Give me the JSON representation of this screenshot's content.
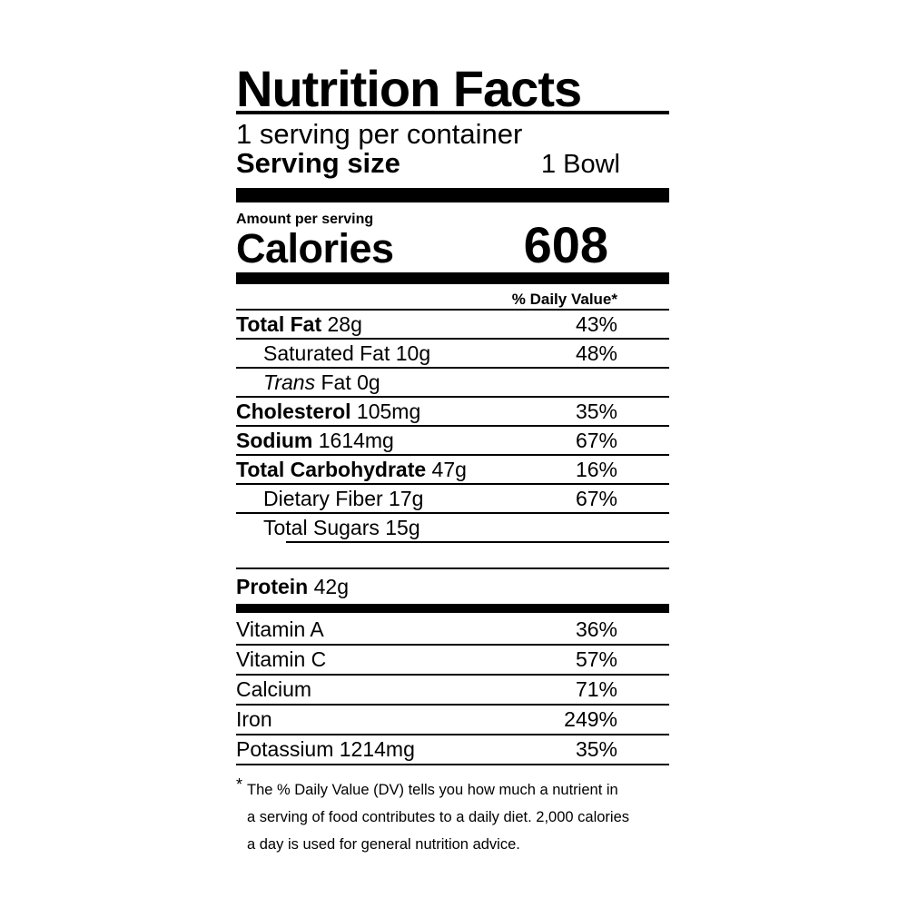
{
  "label": {
    "title": "Nutrition Facts",
    "servings_per_container": "1 serving per container",
    "serving_size": {
      "label": "Serving size",
      "value": "1 Bowl"
    },
    "amount_per_serving": "Amount per serving",
    "calories": {
      "label": "Calories",
      "value": "608"
    },
    "daily_value_header": "% Daily Value*",
    "rows": [
      {
        "bold": "Total Fat",
        "rest": " 28g",
        "dv": "43%"
      },
      {
        "rest": "Saturated Fat 10g",
        "dv": "48%"
      },
      {
        "italic": "Trans",
        "rest": " Fat 0g",
        "dv": ""
      },
      {
        "bold": "Cholesterol",
        "rest": " 105mg",
        "dv": "35%"
      },
      {
        "bold": "Sodium",
        "rest": " 1614mg",
        "dv": "67%"
      },
      {
        "bold": "Total Carbohydrate",
        "rest": " 47g",
        "dv": "16%"
      },
      {
        "rest": "Dietary Fiber 17g",
        "dv": "67%"
      },
      {
        "rest": "Total Sugars 15g",
        "dv": ""
      }
    ],
    "protein": {
      "bold": "Protein",
      "rest": " 42g"
    },
    "vitamins": [
      {
        "name": "Vitamin A",
        "dv": "36%"
      },
      {
        "name": "Vitamin C",
        "dv": "57%"
      },
      {
        "name": "Calcium",
        "dv": "71%"
      },
      {
        "name": "Iron",
        "dv": "249%"
      },
      {
        "name": "Potassium 1214mg",
        "dv": "35%"
      }
    ],
    "footnote": {
      "asterisk": "*",
      "lines": [
        "The % Daily Value (DV) tells you how much a nutrient in",
        "a serving of food contributes to a daily diet. 2,000 calories",
        "a day is used for general nutrition advice."
      ]
    },
    "colors": {
      "ink": "#000000",
      "background": "#ffffff"
    }
  }
}
